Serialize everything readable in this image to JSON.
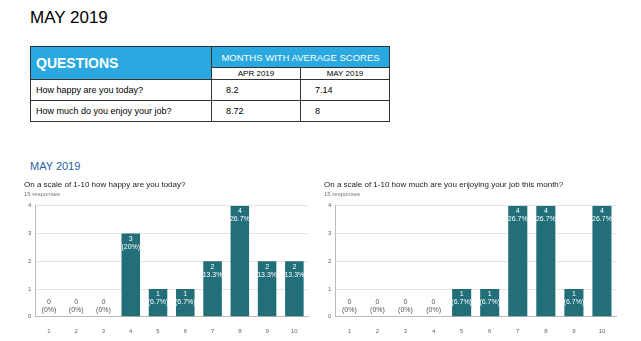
{
  "title": "MAY 2019",
  "table": {
    "header": {
      "questions": "QUESTIONS",
      "group": "MONTHS WITH AVERAGE SCORES",
      "months": [
        "APR 2019",
        "MAY 2019"
      ]
    },
    "rows": [
      [
        "How happy are you today?",
        8.2,
        7.14
      ],
      [
        "How much do you enjoy your job?",
        8.72,
        8
      ]
    ]
  },
  "subtitle": "MAY 2019",
  "chart_data": [
    {
      "type": "bar",
      "title": "On a scale of 1-10 how happy are you today?",
      "subtitle": "15 responses",
      "categories": [
        "1",
        "2",
        "3",
        "4",
        "5",
        "6",
        "7",
        "8",
        "9",
        "10"
      ],
      "values": [
        0,
        0,
        0,
        3,
        1,
        1,
        2,
        4,
        2,
        2
      ],
      "value_labels": [
        "0 (0%)",
        "0 (0%)",
        "0 (0%)",
        "3 (20%)",
        "1 (6.7%)",
        "1 (6.7%)",
        "2 (13.3%)",
        "4 (26.7%)",
        "2 (13.3%)",
        "2 (13.3%)"
      ],
      "color": "#226f7a",
      "ylim": [
        0,
        4
      ],
      "yticks": [
        0,
        1,
        2,
        3,
        4
      ],
      "grid": true,
      "data_labels": true
    },
    {
      "type": "bar",
      "title": "On a scale of 1-10 how much are you enjoying your job this month?",
      "subtitle": "15 responses",
      "categories": [
        "1",
        "2",
        "3",
        "4",
        "5",
        "6",
        "7",
        "8",
        "9",
        "10"
      ],
      "values": [
        0,
        0,
        0,
        0,
        1,
        1,
        4,
        4,
        1,
        4
      ],
      "value_labels": [
        "0 (0%)",
        "0 (0%)",
        "0 (0%)",
        "0 (0%)",
        "1 (6.7%)",
        "1 (6.7%)",
        "4 (26.7%)",
        "4 (26.7%)",
        "1 (6.7%)",
        "4 (26.7%)"
      ],
      "color": "#226f7a",
      "ylim": [
        0,
        4
      ],
      "yticks": [
        0,
        1,
        2,
        3,
        4
      ],
      "grid": true,
      "data_labels": true
    }
  ]
}
